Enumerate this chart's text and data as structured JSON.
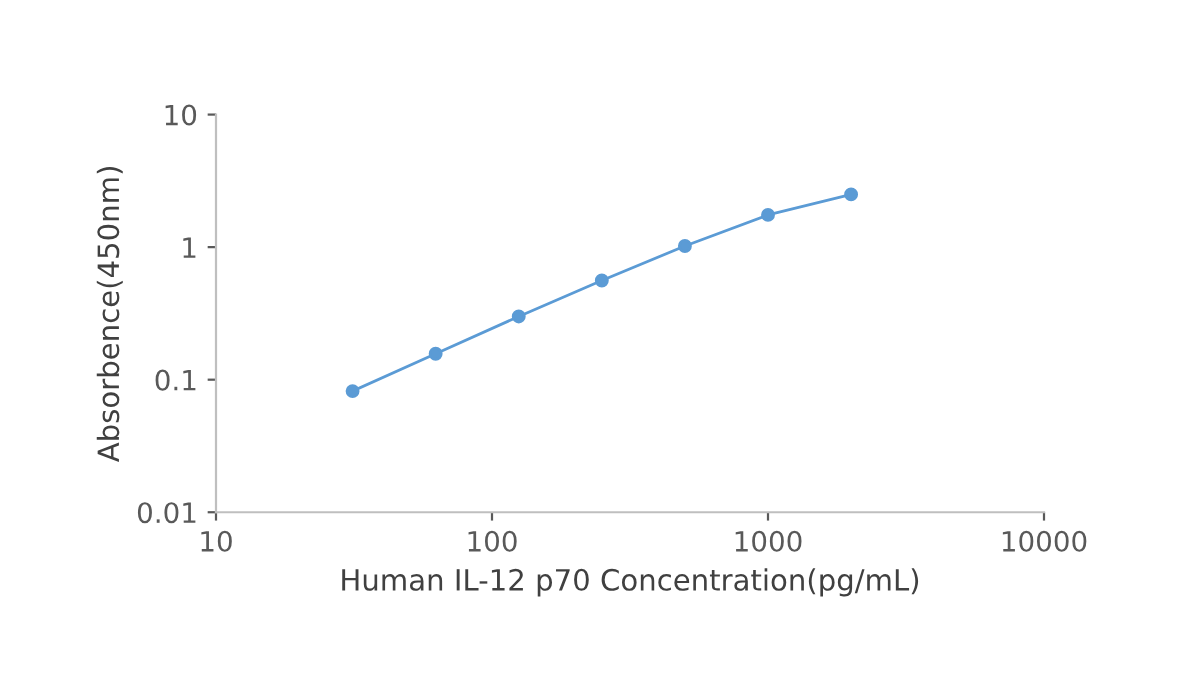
{
  "chart_data": {
    "type": "line",
    "xlabel": "Human IL-12 p70 Concentration(pg/mL)",
    "ylabel": "Absorbence(450nm)",
    "log": "xy",
    "x": [
      31.25,
      62.5,
      125,
      250,
      500,
      1000,
      2000
    ],
    "series": [
      {
        "color": "#5b9bd5",
        "values": [
          0.082,
          0.157,
          0.3,
          0.56,
          1.02,
          1.75,
          2.5
        ]
      }
    ],
    "marker": "circle",
    "line_style": "solid",
    "xlim": [
      10,
      10000
    ],
    "xticks": [
      10,
      100,
      1000,
      10000
    ],
    "ylim": [
      0.01,
      10
    ],
    "yticks": [
      0.01,
      0.1,
      1,
      10
    ],
    "grid": false,
    "legend": false
  }
}
